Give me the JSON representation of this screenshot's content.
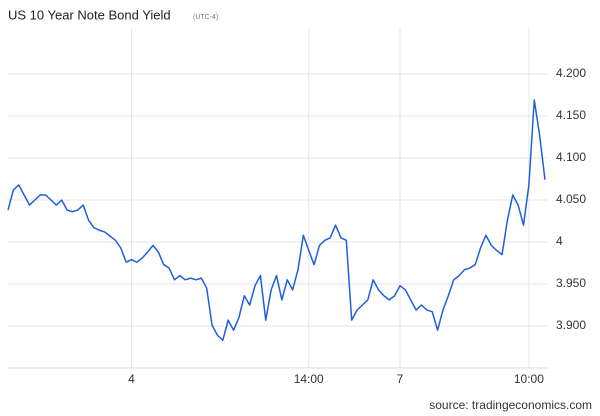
{
  "chart_data": {
    "type": "line",
    "title": "US 10 Year Note Bond Yield",
    "subtitle": "(UTC-4)",
    "source": "source: tradingeconomics.com",
    "categories": [
      null,
      null,
      null,
      null,
      null,
      null,
      null,
      null,
      null,
      null,
      null,
      null,
      null,
      null,
      null,
      null,
      null,
      null,
      null,
      null,
      null,
      null,
      null,
      "4",
      null,
      null,
      null,
      null,
      null,
      null,
      null,
      null,
      null,
      null,
      null,
      null,
      null,
      null,
      null,
      null,
      null,
      null,
      null,
      null,
      null,
      null,
      null,
      null,
      null,
      null,
      null,
      null,
      null,
      null,
      null,
      null,
      "14:00",
      null,
      null,
      null,
      null,
      null,
      null,
      null,
      null,
      null,
      null,
      null,
      null,
      null,
      null,
      null,
      null,
      "7",
      null,
      null,
      null,
      null,
      null,
      null,
      null,
      null,
      null,
      null,
      null,
      null,
      null,
      null,
      null,
      null,
      null,
      null,
      null,
      null,
      null,
      null,
      null,
      "10:00",
      null,
      null,
      null
    ],
    "values": [
      4.038,
      4.062,
      4.068,
      4.056,
      4.044,
      4.05,
      4.056,
      4.056,
      4.05,
      4.044,
      4.05,
      4.038,
      4.036,
      4.038,
      4.044,
      4.026,
      4.017,
      4.014,
      4.012,
      4.007,
      4.002,
      3.993,
      3.976,
      3.979,
      3.976,
      3.981,
      3.988,
      3.996,
      3.988,
      3.973,
      3.969,
      3.955,
      3.96,
      3.955,
      3.957,
      3.955,
      3.957,
      3.945,
      3.901,
      3.889,
      3.883,
      3.907,
      3.895,
      3.91,
      3.936,
      3.925,
      3.948,
      3.96,
      3.907,
      3.943,
      3.96,
      3.931,
      3.955,
      3.943,
      3.967,
      4.008,
      3.99,
      3.973,
      3.996,
      4.002,
      4.005,
      4.02,
      4.005,
      4.002,
      3.907,
      3.919,
      3.925,
      3.931,
      3.955,
      3.943,
      3.936,
      3.931,
      3.936,
      3.948,
      3.943,
      3.931,
      3.919,
      3.925,
      3.919,
      3.917,
      3.895,
      3.919,
      3.936,
      3.955,
      3.96,
      3.967,
      3.969,
      3.973,
      3.993,
      4.008,
      3.996,
      3.99,
      3.985,
      4.026,
      4.056,
      4.044,
      4.02,
      4.068,
      4.169,
      4.127,
      4.074
    ],
    "color": "#1f5fdc",
    "ylim": [
      3.85,
      4.25
    ],
    "yticks": [
      {
        "value": 3.9,
        "label": "3.900"
      },
      {
        "value": 3.95,
        "label": "3.950"
      },
      4,
      {
        "value": 4.05,
        "label": "4.050"
      },
      {
        "value": 4.1,
        "label": "4.100"
      },
      {
        "value": 4.15,
        "label": "4.150"
      },
      {
        "value": 4.2,
        "label": "4.200"
      }
    ],
    "grid": true
  }
}
